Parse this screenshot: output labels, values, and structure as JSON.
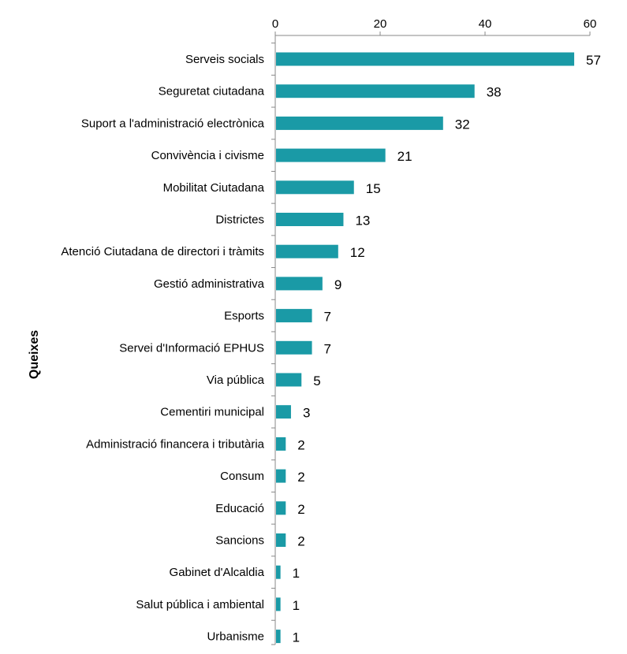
{
  "chart_data": {
    "type": "bar",
    "orientation": "horizontal",
    "title": "",
    "xlabel": "",
    "ylabel": "Queixes",
    "xlim": [
      0,
      60
    ],
    "xticks": [
      0,
      20,
      40,
      60
    ],
    "grid": false,
    "legend": "none",
    "bar_color": "#1a9aa6",
    "categories": [
      "Serveis socials",
      "Seguretat ciutadana",
      "Suport a l'administració electrònica",
      "Convivència i civisme",
      "Mobilitat Ciutadana",
      "Districtes",
      "Atenció Ciutadana de directori i tràmits",
      "Gestió administrativa",
      "Esports",
      "Servei d'Informació EPHUS",
      "Via pública",
      "Cementiri municipal",
      "Administració financera i tributària",
      "Consum",
      "Educació",
      "Sancions",
      "Gabinet d'Alcaldia",
      "Salut pública i ambiental",
      "Urbanisme"
    ],
    "values": [
      57,
      38,
      32,
      21,
      15,
      13,
      12,
      9,
      7,
      7,
      5,
      3,
      2,
      2,
      2,
      2,
      1,
      1,
      1
    ]
  }
}
